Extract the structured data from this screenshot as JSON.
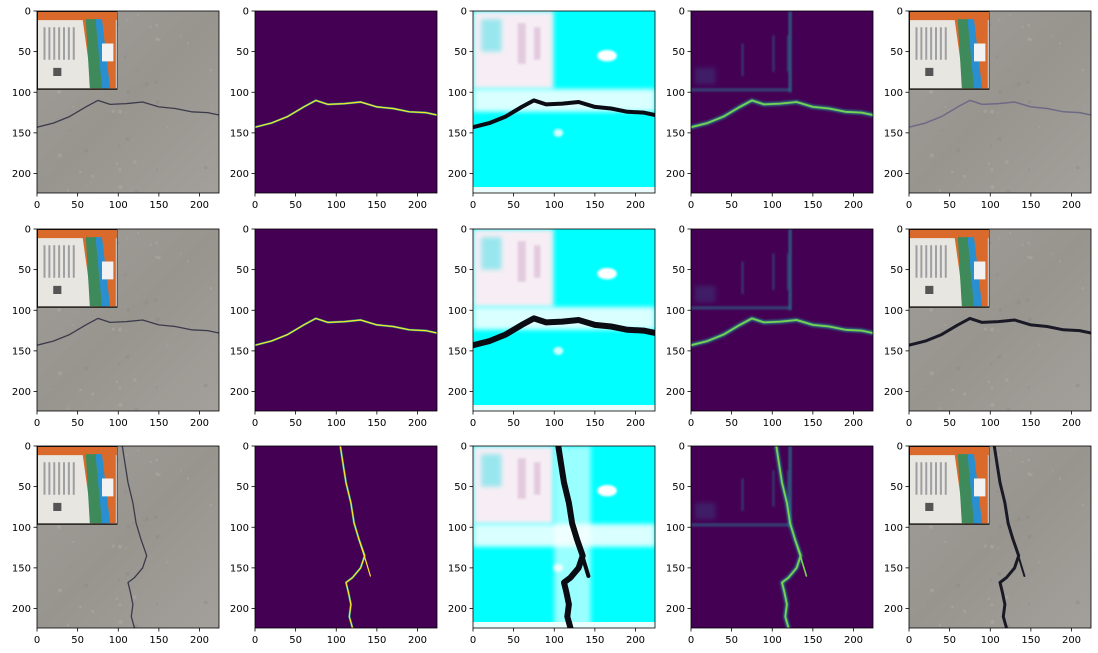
{
  "colors": {
    "background": "#ffffff",
    "viridis_low": "#440154",
    "viridis_mid": "#21918c",
    "viridis_high": "#fde725",
    "cyan_map": "#00ffff",
    "concrete": "#9c9995",
    "crack_dark": "#1a1a26",
    "bag_orange": "#d96a2c",
    "bag_blue": "#2a8fd0",
    "bag_green": "#3f8a5a",
    "bag_white": "#e8e6e0"
  },
  "chart_data": {
    "type": "image_grid",
    "rows": 3,
    "cols": 5,
    "image_size": [
      224,
      224
    ],
    "xlim": [
      0,
      224
    ],
    "ylim": [
      224,
      0
    ],
    "xticks": [
      0,
      50,
      100,
      150,
      200
    ],
    "yticks": [
      0,
      50,
      100,
      150,
      200
    ],
    "xtick_labels": [
      "0",
      "50",
      "100",
      "150",
      "200"
    ],
    "ytick_labels": [
      "0",
      "50",
      "100",
      "150",
      "200"
    ],
    "panel_kinds": [
      "photo",
      "mask",
      "heatmap_cyan",
      "heatmap_viridis",
      "photo_overlay"
    ],
    "cracks": [
      [
        [
          0,
          143
        ],
        [
          20,
          138
        ],
        [
          40,
          130
        ],
        [
          60,
          118
        ],
        [
          75,
          110
        ],
        [
          90,
          115
        ],
        [
          110,
          114
        ],
        [
          130,
          112
        ],
        [
          150,
          118
        ],
        [
          170,
          120
        ],
        [
          190,
          124
        ],
        [
          210,
          125
        ],
        [
          224,
          128
        ]
      ],
      [
        [
          0,
          143
        ],
        [
          20,
          138
        ],
        [
          40,
          130
        ],
        [
          60,
          118
        ],
        [
          75,
          110
        ],
        [
          90,
          115
        ],
        [
          110,
          114
        ],
        [
          130,
          112
        ],
        [
          150,
          118
        ],
        [
          170,
          120
        ],
        [
          190,
          124
        ],
        [
          210,
          125
        ],
        [
          224,
          128
        ]
      ],
      [
        [
          105,
          0
        ],
        [
          108,
          20
        ],
        [
          112,
          45
        ],
        [
          118,
          70
        ],
        [
          122,
          95
        ],
        [
          128,
          115
        ],
        [
          135,
          135
        ],
        [
          130,
          150
        ],
        [
          120,
          162
        ],
        [
          112,
          168
        ],
        [
          115,
          180
        ],
        [
          118,
          195
        ],
        [
          116,
          210
        ],
        [
          120,
          224
        ]
      ]
    ],
    "crack_branches": [
      [],
      [],
      [
        [
          [
            128,
            115
          ],
          [
            136,
            140
          ],
          [
            142,
            160
          ]
        ]
      ]
    ]
  }
}
